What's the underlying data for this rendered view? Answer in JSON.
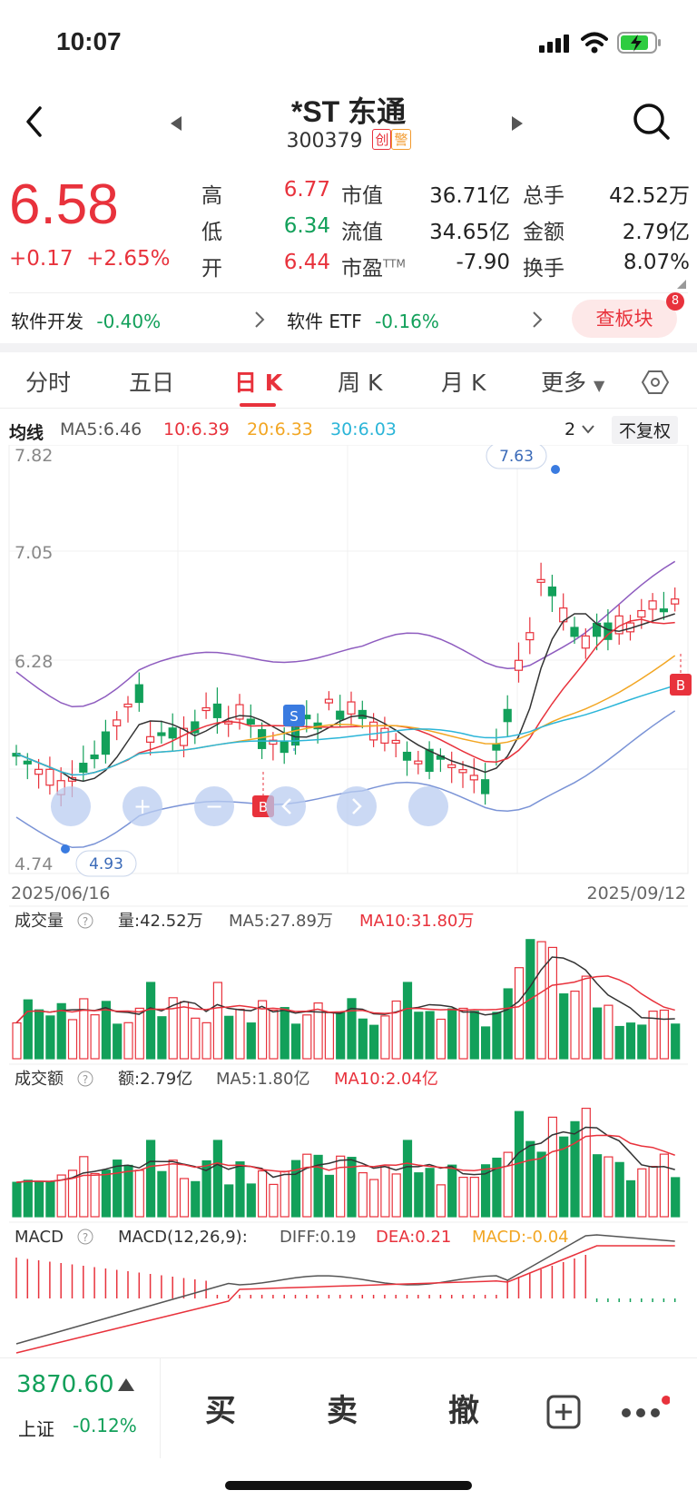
{
  "status": {
    "time": "10:07"
  },
  "header": {
    "title": "*ST 东通",
    "code": "300379",
    "badge1": "创",
    "badge2": "警"
  },
  "quote": {
    "price": "6.58",
    "change": "+0.17",
    "change_pct": "+2.65%",
    "stats": [
      {
        "label": "高",
        "value": "6.77"
      },
      {
        "label": "低",
        "value": "6.34"
      },
      {
        "label": "开",
        "value": "6.44"
      },
      {
        "label": "市值",
        "value": "36.71亿"
      },
      {
        "label": "流值",
        "value": "34.65亿"
      },
      {
        "label": "市盈",
        "sup": "TTM",
        "value": "-7.90"
      },
      {
        "label": "总手",
        "value": "42.52万"
      },
      {
        "label": "金额",
        "value": "2.79亿"
      },
      {
        "label": "换手",
        "value": "8.07%"
      }
    ]
  },
  "sectors": {
    "s1_name": "软件开发",
    "s1_pct": "-0.40%",
    "s2_name": "软件 ETF",
    "s2_pct": "-0.16%",
    "button": "查板块",
    "button_badge": "8"
  },
  "tabs": [
    "分时",
    "五日",
    "日 K",
    "周 K",
    "月 K",
    "更多"
  ],
  "ma": {
    "label": "均线",
    "ma5": "MA5:6.46",
    "ma10": "10:6.39",
    "ma20": "20:6.33",
    "ma30": "30:6.03",
    "period": "2",
    "adjust": "不复权"
  },
  "kline": {
    "y_labels": [
      "7.82",
      "7.05",
      "6.28",
      "4.74"
    ],
    "high_mark": "7.63",
    "low_mark": "4.93",
    "date_start": "2025/06/16",
    "date_end": "2025/09/12",
    "marker_s": "S",
    "marker_b": "B"
  },
  "volume": {
    "label": "成交量",
    "val": "量:42.52万",
    "ma5": "MA5:27.89万",
    "ma10": "MA10:31.80万"
  },
  "amount": {
    "label": "成交额",
    "val": "额:2.79亿",
    "ma5": "MA5:1.80亿",
    "ma10": "MA10:2.04亿"
  },
  "macd": {
    "label": "MACD",
    "params": "MACD(12,26,9):",
    "diff": "DIFF:0.19",
    "dea": "DEA:0.21",
    "macd": "MACD:-0.04"
  },
  "bottom": {
    "index_value": "3870.60",
    "index_name": "上证",
    "index_pct": "-0.12%",
    "buy": "买",
    "sell": "卖",
    "cancel": "撤"
  },
  "colors": {
    "up": "#e8323c",
    "down": "#12a05a",
    "ma5": "#333333",
    "ma10": "#e8323c",
    "ma20": "#f2a623",
    "ma30": "#2bb5d8",
    "boll": "#8e5cbf"
  }
}
